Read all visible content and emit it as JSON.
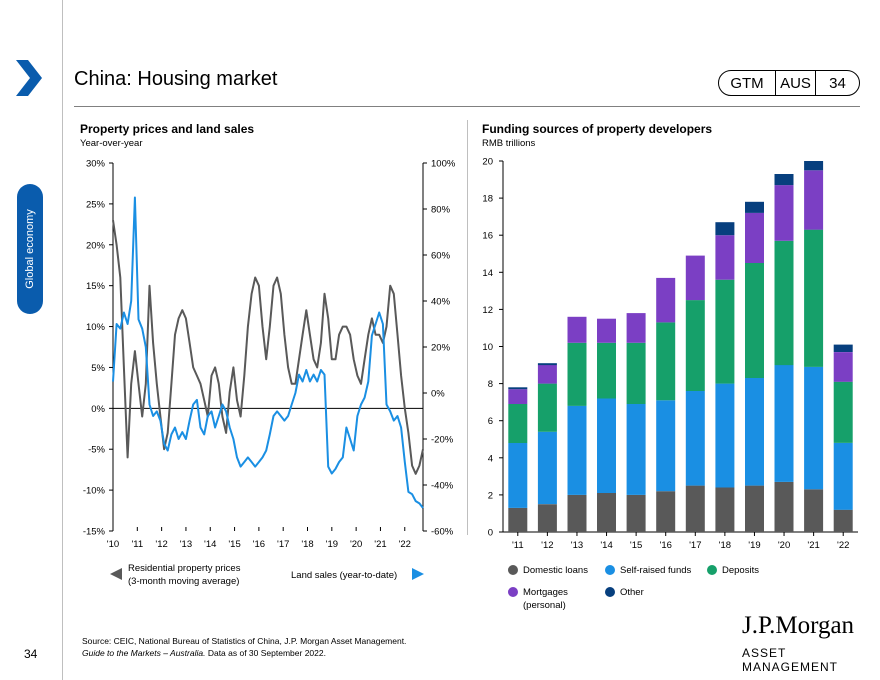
{
  "header": {
    "title": "China: Housing market",
    "badge_gtm": "GTM",
    "badge_region": "AUS",
    "badge_page": "34"
  },
  "sidebar": {
    "tab_label": "Global economy",
    "page_number": "34"
  },
  "left_chart": {
    "title": "Property prices and land sales",
    "subtitle": "Year-over-year"
  },
  "right_chart": {
    "title": "Funding sources of property developers",
    "subtitle": "RMB trillions"
  },
  "footer": {
    "source": "Source: CEIC, National Bureau of Statistics of China, J.P. Morgan Asset Management.",
    "note_italic": "Guide to the Markets – Australia.",
    "note_rest": " Data as of 30 September 2022."
  },
  "logo": {
    "name": "J.P.Morgan",
    "sub": "ASSET MANAGEMENT"
  },
  "colors": {
    "accent": "#0a5cad",
    "grey_line": "#595959",
    "blue_line": "#1a8fe3",
    "domestic": "#595959",
    "self_raised": "#1a8fe3",
    "deposits": "#16a06a",
    "mortgages": "#7b3fc4",
    "other": "#073f7e"
  },
  "chart_data": [
    {
      "type": "line",
      "title": "Property prices and land sales",
      "subtitle": "Year-over-year",
      "x_tick_labels": [
        "'10",
        "'11",
        "'12",
        "'13",
        "'14",
        "'15",
        "'16",
        "'17",
        "'18",
        "'19",
        "'20",
        "'21",
        "'22"
      ],
      "y_left_ticks": [
        "30%",
        "25%",
        "20%",
        "15%",
        "10%",
        "5%",
        "0%",
        "-5%",
        "-10%",
        "-15%"
      ],
      "y_left_range": [
        -15,
        30
      ],
      "y_right_ticks": [
        "100%",
        "80%",
        "60%",
        "40%",
        "20%",
        "0%",
        "-20%",
        "-40%",
        "-60%"
      ],
      "y_right_range": [
        -60,
        100
      ],
      "series": [
        {
          "name": "Residential property prices (3-month moving average)",
          "axis": "left",
          "legend_line1": "Residential property prices",
          "legend_line2": "(3-month moving average)",
          "x": [
            2010.0,
            2010.15,
            2010.3,
            2010.45,
            2010.6,
            2010.75,
            2010.9,
            2011.05,
            2011.2,
            2011.35,
            2011.5,
            2011.65,
            2011.8,
            2011.95,
            2012.1,
            2012.25,
            2012.4,
            2012.55,
            2012.7,
            2012.85,
            2013.0,
            2013.15,
            2013.3,
            2013.45,
            2013.6,
            2013.75,
            2013.9,
            2014.05,
            2014.2,
            2014.35,
            2014.5,
            2014.65,
            2014.8,
            2014.95,
            2015.1,
            2015.25,
            2015.4,
            2015.55,
            2015.7,
            2015.85,
            2016.0,
            2016.15,
            2016.3,
            2016.45,
            2016.6,
            2016.75,
            2016.9,
            2017.05,
            2017.2,
            2017.35,
            2017.5,
            2017.65,
            2017.8,
            2017.95,
            2018.1,
            2018.25,
            2018.4,
            2018.55,
            2018.7,
            2018.85,
            2019.0,
            2019.15,
            2019.3,
            2019.45,
            2019.6,
            2019.75,
            2019.9,
            2020.05,
            2020.2,
            2020.35,
            2020.5,
            2020.65,
            2020.8,
            2020.95,
            2021.1,
            2021.25,
            2021.4,
            2021.55,
            2021.7,
            2021.85,
            2022.0,
            2022.15,
            2022.3,
            2022.45,
            2022.6,
            2022.75
          ],
          "y": [
            23,
            20,
            16,
            5,
            -6,
            3,
            7,
            3,
            -1,
            3,
            15,
            8,
            3,
            -1,
            -5,
            -3,
            3,
            9,
            11,
            12,
            11,
            8,
            5,
            4,
            3,
            1,
            -1,
            4,
            5,
            3,
            -1,
            -3,
            2,
            5,
            1,
            -1,
            4,
            10,
            14,
            16,
            15,
            10,
            6,
            10,
            15,
            16,
            14,
            9,
            5,
            3,
            3,
            6,
            9,
            12,
            9,
            6,
            5,
            8,
            14,
            11,
            6,
            6,
            9,
            10,
            10,
            9,
            6,
            4,
            3,
            6,
            9,
            11,
            9,
            9,
            8,
            10,
            15,
            14,
            9,
            4,
            0,
            -3,
            -7,
            -8,
            -7,
            -5
          ],
          "color": "#595959"
        },
        {
          "name": "Land sales (year-to-date)",
          "axis": "right",
          "legend_label": "Land sales (year-to-date)",
          "x": [
            2010.0,
            2010.15,
            2010.3,
            2010.45,
            2010.6,
            2010.75,
            2010.9,
            2011.05,
            2011.2,
            2011.35,
            2011.5,
            2011.65,
            2011.8,
            2011.95,
            2012.1,
            2012.25,
            2012.4,
            2012.55,
            2012.7,
            2012.85,
            2013.0,
            2013.15,
            2013.3,
            2013.45,
            2013.6,
            2013.75,
            2013.9,
            2014.05,
            2014.2,
            2014.35,
            2014.5,
            2014.65,
            2014.8,
            2014.95,
            2015.1,
            2015.25,
            2015.4,
            2015.55,
            2015.7,
            2015.85,
            2016.0,
            2016.15,
            2016.3,
            2016.45,
            2016.6,
            2016.75,
            2016.9,
            2017.05,
            2017.2,
            2017.35,
            2017.5,
            2017.65,
            2017.8,
            2017.95,
            2018.1,
            2018.25,
            2018.4,
            2018.55,
            2018.7,
            2018.85,
            2019.0,
            2019.15,
            2019.3,
            2019.45,
            2019.6,
            2019.75,
            2019.9,
            2020.05,
            2020.2,
            2020.35,
            2020.5,
            2020.65,
            2020.8,
            2020.95,
            2021.1,
            2021.25,
            2021.4,
            2021.55,
            2021.7,
            2021.85,
            2022.0,
            2022.15,
            2022.3,
            2022.45,
            2022.6,
            2022.75
          ],
          "y": [
            5,
            30,
            28,
            35,
            30,
            40,
            85,
            32,
            28,
            20,
            -5,
            -10,
            -8,
            -12,
            -22,
            -25,
            -18,
            -15,
            -20,
            -17,
            -20,
            -12,
            -5,
            -3,
            -15,
            -18,
            -10,
            -8,
            -15,
            -10,
            -5,
            -8,
            -15,
            -20,
            -28,
            -32,
            -30,
            -28,
            -30,
            -32,
            -30,
            -28,
            -25,
            -18,
            -10,
            -8,
            -10,
            -12,
            -10,
            -5,
            0,
            8,
            5,
            10,
            5,
            8,
            5,
            10,
            8,
            -32,
            -35,
            -33,
            -30,
            -28,
            -15,
            -20,
            -25,
            -10,
            -5,
            -2,
            5,
            25,
            30,
            35,
            30,
            -5,
            -8,
            -12,
            -10,
            -15,
            -30,
            -43,
            -44,
            -47,
            -48,
            -50
          ],
          "color": "#1a8fe3"
        }
      ]
    },
    {
      "type": "bar",
      "stacked": true,
      "title": "Funding sources of property developers",
      "ylabel": "RMB trillions",
      "categories": [
        "'11",
        "'12",
        "'13",
        "'14",
        "'15",
        "'16",
        "'17",
        "'18",
        "'19",
        "'20",
        "'21",
        "'22"
      ],
      "y_ticks": [
        "20",
        "18",
        "16",
        "14",
        "12",
        "10",
        "8",
        "6",
        "4",
        "2",
        "0"
      ],
      "ylim": [
        0,
        20
      ],
      "series": [
        {
          "name": "Domestic loans",
          "color": "#595959",
          "values": [
            1.3,
            1.5,
            2.0,
            2.1,
            2.0,
            2.2,
            2.5,
            2.4,
            2.5,
            2.7,
            2.3,
            1.2
          ]
        },
        {
          "name": "Self-raised funds",
          "color": "#1a8fe3",
          "values": [
            3.5,
            3.9,
            4.8,
            5.1,
            4.9,
            4.9,
            5.1,
            5.6,
            5.8,
            6.3,
            6.6,
            3.6
          ]
        },
        {
          "name": "Deposits",
          "color": "#16a06a",
          "values": [
            2.1,
            2.6,
            3.4,
            3.0,
            3.3,
            4.2,
            4.9,
            5.6,
            6.2,
            6.7,
            7.4,
            3.3
          ]
        },
        {
          "name": "Mortgages (personal)",
          "legend_line1": "Mortgages",
          "legend_line2": "(personal)",
          "color": "#7b3fc4",
          "values": [
            0.8,
            1.0,
            1.4,
            1.3,
            1.6,
            2.4,
            2.4,
            2.4,
            2.7,
            3.0,
            3.2,
            1.6
          ]
        },
        {
          "name": "Other",
          "color": "#073f7e",
          "values": [
            0.1,
            0.1,
            0,
            0,
            0,
            0,
            0,
            0.7,
            0.6,
            0.6,
            0.5,
            0.4
          ]
        }
      ]
    }
  ]
}
